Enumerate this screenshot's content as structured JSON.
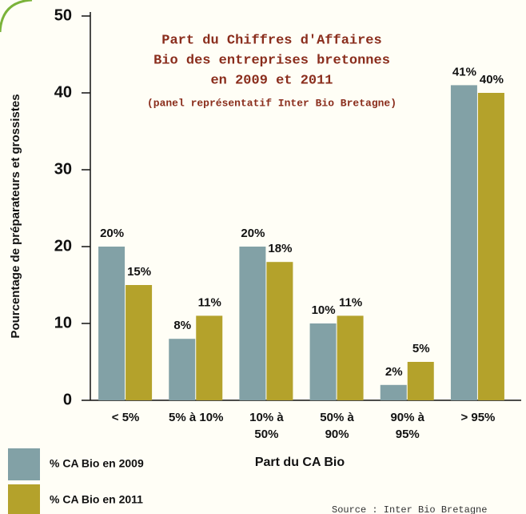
{
  "chart_data": {
    "type": "bar",
    "title": [
      "Part du Chiffres d'Affaires",
      "Bio des entreprises bretonnes",
      "en 2009 et 2011"
    ],
    "subtitle": "(panel représentatif Inter Bio Bretagne)",
    "x_label": "Part du CA Bio",
    "y_label": "Pourcentage de préparateurs et grossistes",
    "source": "Source : Inter Bio Bretagne",
    "categories": [
      "< 5%",
      "5% à 10%",
      "10% à\n50%",
      "50% à\n90%",
      "90% à\n95%",
      "> 95%"
    ],
    "series": [
      {
        "name": "% CA Bio en 2009",
        "color": "#82a1a6",
        "values": [
          20,
          8,
          20,
          10,
          2,
          41
        ],
        "value_labels": [
          "20%",
          "8%",
          "20%",
          "10%",
          "2%",
          "41%"
        ]
      },
      {
        "name": "% CA Bio en 2011",
        "color": "#b4a22b",
        "values": [
          15,
          11,
          18,
          11,
          5,
          40
        ],
        "value_labels": [
          "15%",
          "11%",
          "18%",
          "11%",
          "5%",
          "40%"
        ]
      }
    ],
    "ylim": [
      0,
      50
    ],
    "yticks": [
      0,
      10,
      20,
      30,
      40,
      50
    ],
    "grid": false,
    "legend": "bottom-left"
  }
}
